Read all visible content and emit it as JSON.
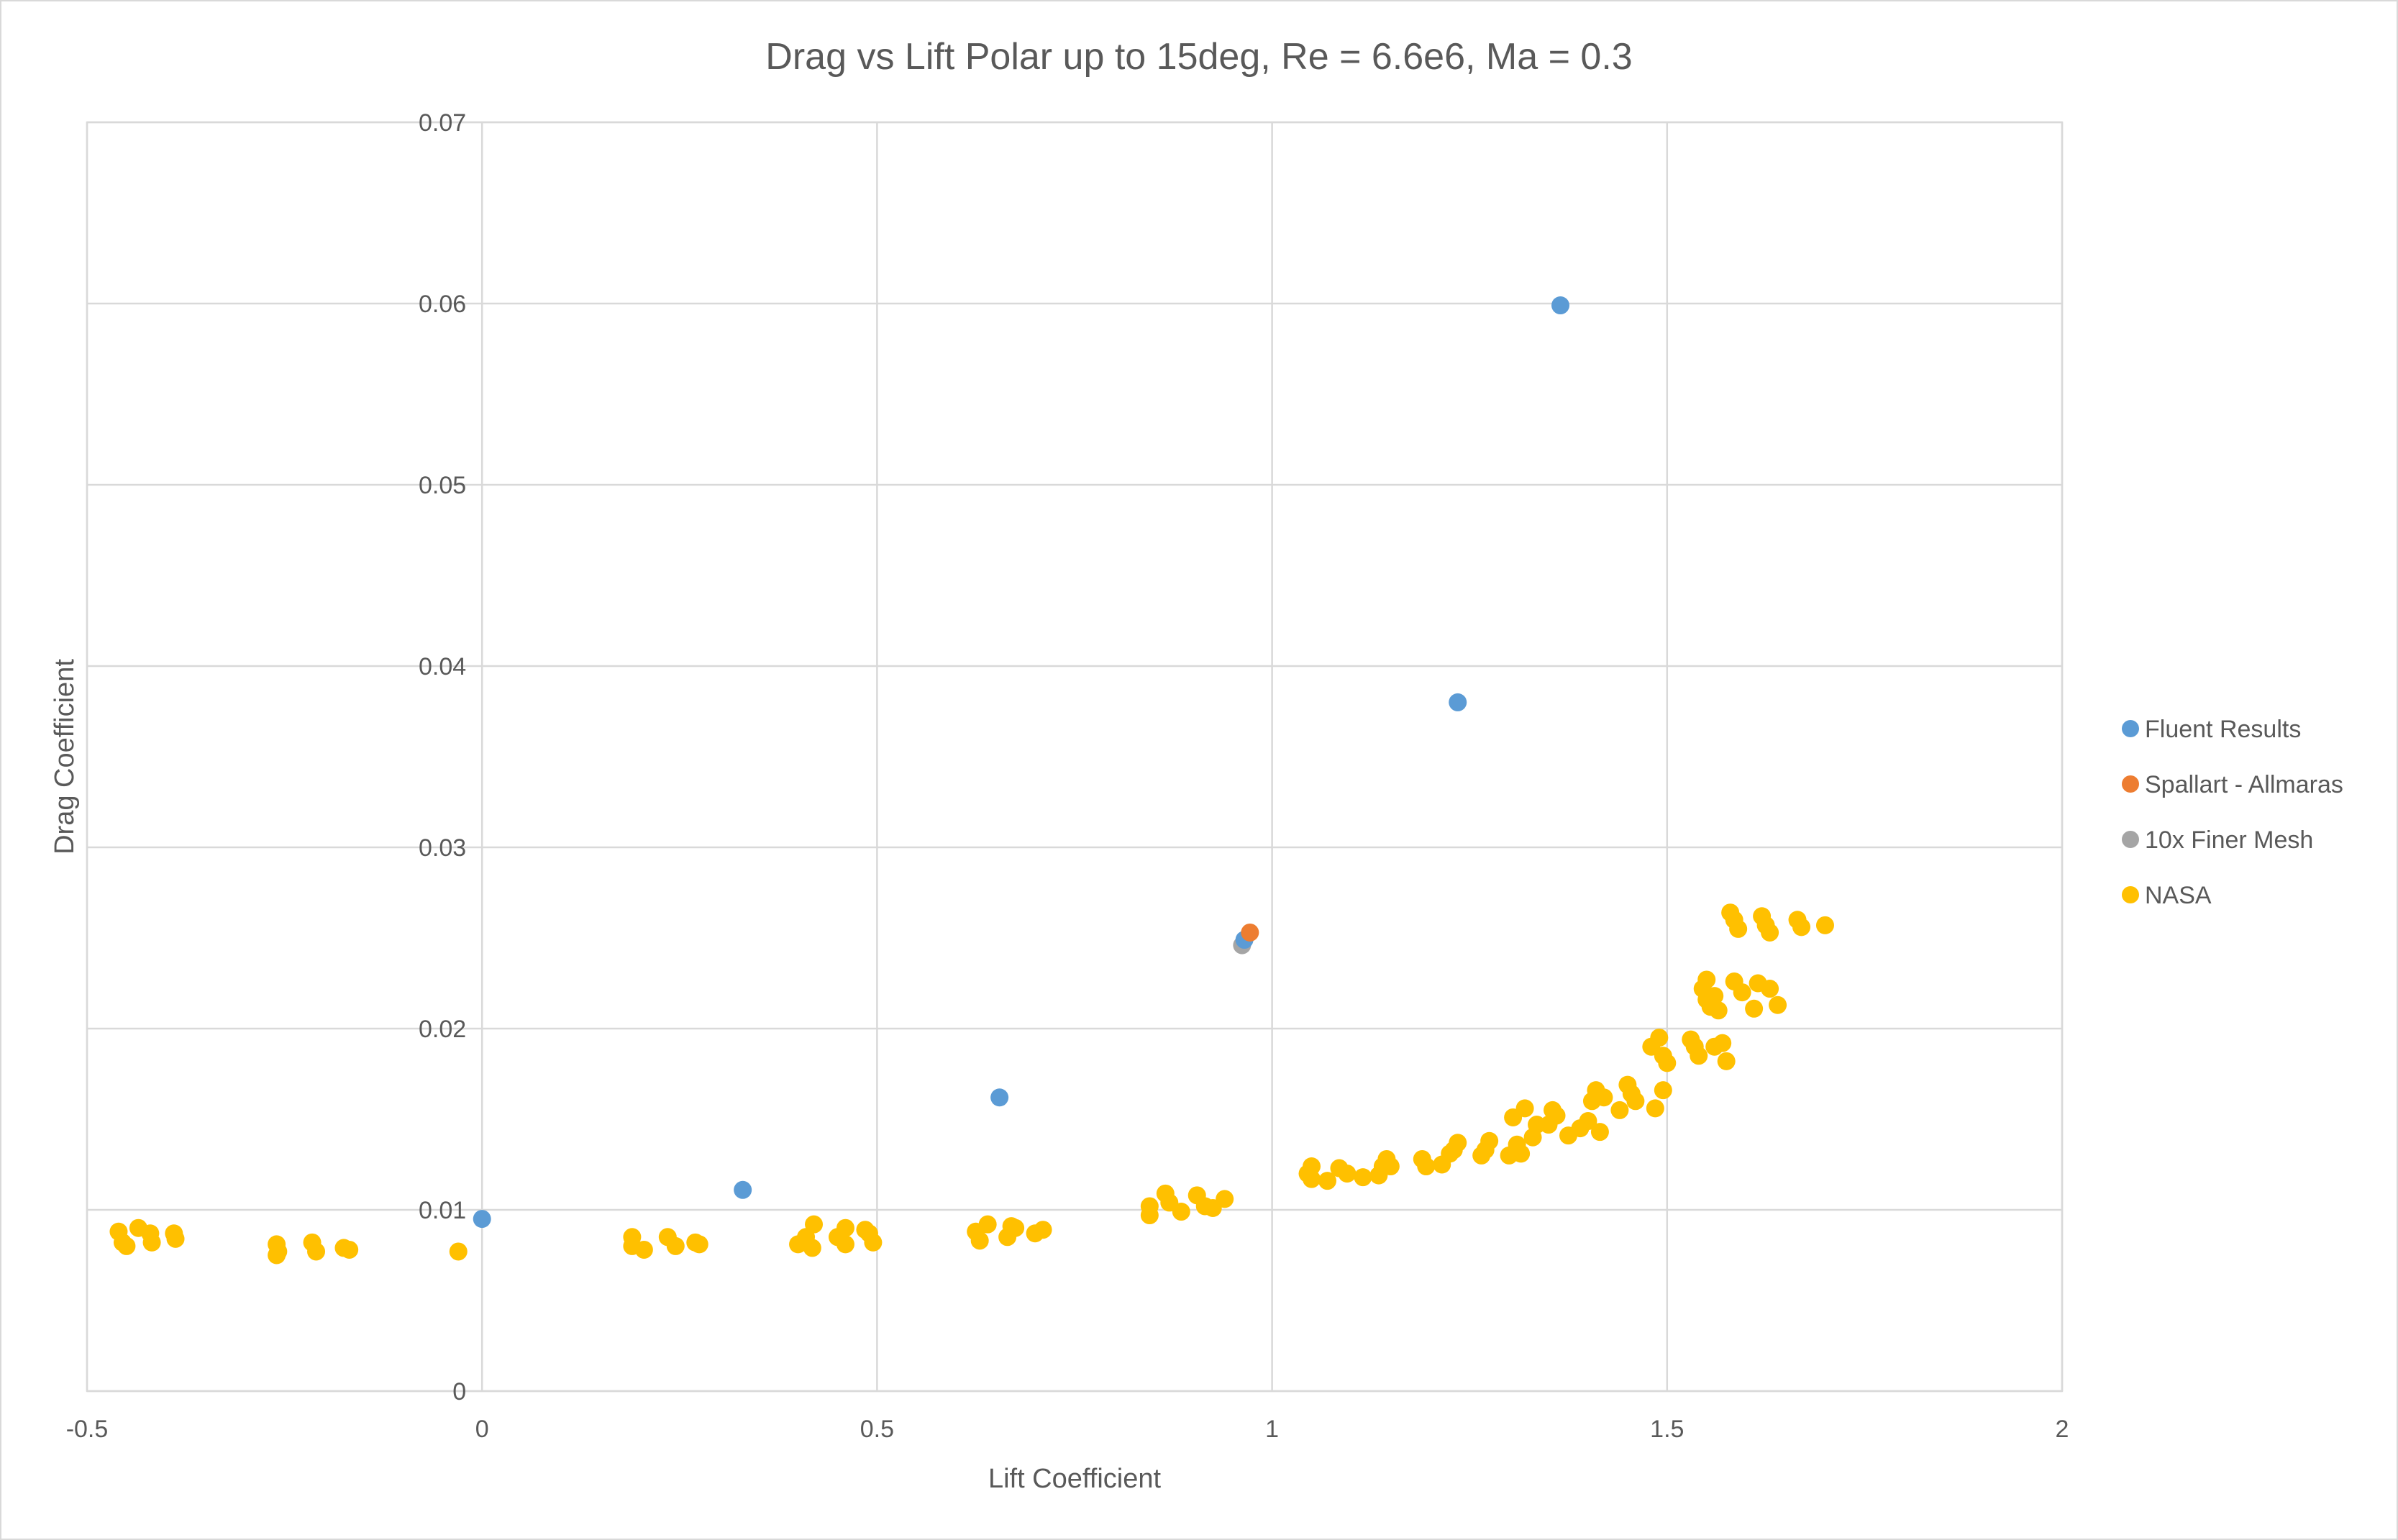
{
  "chart_data": {
    "type": "scatter",
    "title": "Drag vs Lift Polar up to 15deg, Re = 6.6e6, Ma = 0.3",
    "xlabel": "Lift Coefficient",
    "ylabel": "Drag Coefficient",
    "xlim": [
      -0.5,
      2
    ],
    "ylim": [
      0,
      0.07
    ],
    "x_ticks": [
      -0.5,
      0,
      0.5,
      1,
      1.5,
      2
    ],
    "x_tick_labels": [
      "-0.5",
      "0",
      "0.5",
      "1",
      "1.5",
      "2"
    ],
    "y_ticks": [
      0,
      0.01,
      0.02,
      0.03,
      0.04,
      0.05,
      0.06,
      0.07
    ],
    "y_tick_labels": [
      "0",
      "0.01",
      "0.02",
      "0.03",
      "0.04",
      "0.05",
      "0.06",
      "0.07"
    ],
    "grid": true,
    "legend_position": "right",
    "series": [
      {
        "name": "Fluent Results",
        "color": "#5b9bd5",
        "points": [
          [
            0.0,
            0.0095
          ],
          [
            0.33,
            0.0111
          ],
          [
            0.655,
            0.0162
          ],
          [
            0.965,
            0.0249
          ],
          [
            1.235,
            0.038
          ],
          [
            1.365,
            0.0599
          ]
        ]
      },
      {
        "name": "Spallart - Allmaras",
        "color": "#ed7d31",
        "points": [
          [
            0.972,
            0.0253
          ]
        ]
      },
      {
        "name": "10x Finer Mesh",
        "color": "#a5a5a5",
        "points": [
          [
            0.962,
            0.0246
          ]
        ]
      },
      {
        "name": "NASA",
        "color": "#ffc000",
        "points": [
          [
            -0.46,
            0.0088
          ],
          [
            -0.455,
            0.0082
          ],
          [
            -0.45,
            0.008
          ],
          [
            -0.435,
            0.009
          ],
          [
            -0.42,
            0.0087
          ],
          [
            -0.418,
            0.0082
          ],
          [
            -0.39,
            0.0087
          ],
          [
            -0.388,
            0.0084
          ],
          [
            -0.26,
            0.0081
          ],
          [
            -0.26,
            0.0075
          ],
          [
            -0.258,
            0.0077
          ],
          [
            -0.215,
            0.0082
          ],
          [
            -0.21,
            0.0077
          ],
          [
            -0.175,
            0.0079
          ],
          [
            -0.168,
            0.0078
          ],
          [
            -0.03,
            0.0077
          ],
          [
            0.19,
            0.0085
          ],
          [
            0.19,
            0.008
          ],
          [
            0.205,
            0.0078
          ],
          [
            0.235,
            0.0085
          ],
          [
            0.245,
            0.008
          ],
          [
            0.27,
            0.0082
          ],
          [
            0.275,
            0.0081
          ],
          [
            0.4,
            0.0081
          ],
          [
            0.41,
            0.0085
          ],
          [
            0.42,
            0.0092
          ],
          [
            0.418,
            0.0079
          ],
          [
            0.45,
            0.0085
          ],
          [
            0.46,
            0.009
          ],
          [
            0.46,
            0.0081
          ],
          [
            0.485,
            0.0089
          ],
          [
            0.49,
            0.0087
          ],
          [
            0.495,
            0.0082
          ],
          [
            0.625,
            0.0088
          ],
          [
            0.63,
            0.0083
          ],
          [
            0.64,
            0.0092
          ],
          [
            0.665,
            0.0085
          ],
          [
            0.67,
            0.0091
          ],
          [
            0.675,
            0.009
          ],
          [
            0.7,
            0.0087
          ],
          [
            0.71,
            0.0089
          ],
          [
            0.845,
            0.0102
          ],
          [
            0.845,
            0.0097
          ],
          [
            0.865,
            0.0109
          ],
          [
            0.87,
            0.0104
          ],
          [
            0.885,
            0.0099
          ],
          [
            0.905,
            0.0108
          ],
          [
            0.915,
            0.0102
          ],
          [
            0.925,
            0.0101
          ],
          [
            0.94,
            0.0106
          ],
          [
            1.045,
            0.012
          ],
          [
            1.05,
            0.0117
          ],
          [
            1.05,
            0.0124
          ],
          [
            1.07,
            0.0116
          ],
          [
            1.085,
            0.0123
          ],
          [
            1.095,
            0.012
          ],
          [
            1.115,
            0.0118
          ],
          [
            1.135,
            0.0119
          ],
          [
            1.14,
            0.0124
          ],
          [
            1.145,
            0.0128
          ],
          [
            1.15,
            0.0124
          ],
          [
            1.19,
            0.0128
          ],
          [
            1.195,
            0.0124
          ],
          [
            1.215,
            0.0125
          ],
          [
            1.225,
            0.0131
          ],
          [
            1.23,
            0.0133
          ],
          [
            1.235,
            0.0137
          ],
          [
            1.265,
            0.013
          ],
          [
            1.27,
            0.0133
          ],
          [
            1.275,
            0.0138
          ],
          [
            1.3,
            0.013
          ],
          [
            1.305,
            0.0151
          ],
          [
            1.31,
            0.0136
          ],
          [
            1.315,
            0.0131
          ],
          [
            1.32,
            0.0156
          ],
          [
            1.33,
            0.014
          ],
          [
            1.335,
            0.0147
          ],
          [
            1.35,
            0.0147
          ],
          [
            1.355,
            0.0155
          ],
          [
            1.36,
            0.0152
          ],
          [
            1.375,
            0.0141
          ],
          [
            1.39,
            0.0145
          ],
          [
            1.4,
            0.0149
          ],
          [
            1.405,
            0.016
          ],
          [
            1.41,
            0.0166
          ],
          [
            1.415,
            0.0143
          ],
          [
            1.42,
            0.0162
          ],
          [
            1.44,
            0.0155
          ],
          [
            1.45,
            0.0169
          ],
          [
            1.455,
            0.0164
          ],
          [
            1.46,
            0.016
          ],
          [
            1.48,
            0.019
          ],
          [
            1.485,
            0.0156
          ],
          [
            1.49,
            0.0195
          ],
          [
            1.495,
            0.0185
          ],
          [
            1.495,
            0.0166
          ],
          [
            1.5,
            0.0181
          ],
          [
            1.53,
            0.0194
          ],
          [
            1.535,
            0.019
          ],
          [
            1.54,
            0.0185
          ],
          [
            1.545,
            0.0222
          ],
          [
            1.55,
            0.0227
          ],
          [
            1.55,
            0.0216
          ],
          [
            1.555,
            0.0212
          ],
          [
            1.56,
            0.0218
          ],
          [
            1.56,
            0.019
          ],
          [
            1.565,
            0.021
          ],
          [
            1.57,
            0.0192
          ],
          [
            1.575,
            0.0182
          ],
          [
            1.58,
            0.0264
          ],
          [
            1.585,
            0.026
          ],
          [
            1.585,
            0.0226
          ],
          [
            1.59,
            0.0255
          ],
          [
            1.595,
            0.022
          ],
          [
            1.61,
            0.0211
          ],
          [
            1.615,
            0.0225
          ],
          [
            1.62,
            0.0262
          ],
          [
            1.625,
            0.0257
          ],
          [
            1.63,
            0.0222
          ],
          [
            1.63,
            0.0253
          ],
          [
            1.64,
            0.0213
          ],
          [
            1.665,
            0.026
          ],
          [
            1.67,
            0.0256
          ],
          [
            1.7,
            0.0257
          ]
        ]
      }
    ]
  }
}
